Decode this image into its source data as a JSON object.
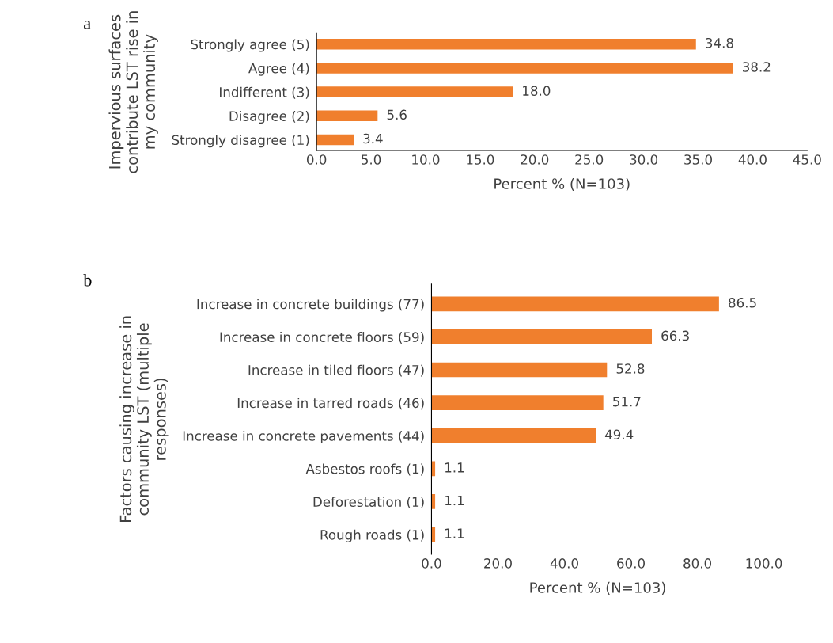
{
  "chart_data": [
    {
      "type": "bar",
      "orientation": "horizontal",
      "title": "a",
      "ylabel": "Impervious surfaces\ncontribute LST rise in\nmy community",
      "xlabel": "Percent % (N=103)",
      "categories": [
        "Strongly agree (5)",
        "Agree (4)",
        "Indifferent (3)",
        "Disagree (2)",
        "Strongly disagree (1)"
      ],
      "values": [
        34.8,
        38.2,
        18.0,
        5.6,
        3.4
      ],
      "value_labels": [
        "34.8",
        "38.2",
        "18.0",
        "5.6",
        "3.4"
      ],
      "color": "#f07f2d",
      "grid": false,
      "legend": false,
      "xlim": [
        0,
        45
      ],
      "xticks": [
        {
          "value": 0,
          "label": "0.0"
        },
        {
          "value": 5,
          "label": "5.0"
        },
        {
          "value": 10,
          "label": "10.0"
        },
        {
          "value": 15,
          "label": "15.0"
        },
        {
          "value": 20,
          "label": "20.0"
        },
        {
          "value": 25,
          "label": "25.0"
        },
        {
          "value": 30,
          "label": "30.0"
        },
        {
          "value": 35,
          "label": "35.0"
        },
        {
          "value": 40,
          "label": "40.0"
        },
        {
          "value": 45,
          "label": "45.0"
        }
      ]
    },
    {
      "type": "bar",
      "orientation": "horizontal",
      "title": "b",
      "ylabel": "Factors causing increase in\ncommunity LST (multiple\nresponses)",
      "xlabel": "Percent % (N=103)",
      "categories": [
        "Increase in concrete buildings (77)",
        "Increase in concrete floors (59)",
        "Increase in tiled floors (47)",
        "Increase in tarred roads (46)",
        "Increase in concrete pavements (44)",
        "Asbestos roofs (1)",
        "Deforestation (1)",
        "Rough roads (1)"
      ],
      "values": [
        86.5,
        66.3,
        52.8,
        51.7,
        49.4,
        1.1,
        1.1,
        1.1
      ],
      "value_labels": [
        "86.5",
        "66.3",
        "52.8",
        "51.7",
        "49.4",
        "1.1",
        "1.1",
        "1.1"
      ],
      "color": "#f07f2d",
      "grid": false,
      "legend": false,
      "xlim": [
        0,
        100
      ],
      "xticks": [
        {
          "value": 0,
          "label": "0.0"
        },
        {
          "value": 20,
          "label": "20.0"
        },
        {
          "value": 40,
          "label": "40.0"
        },
        {
          "value": 60,
          "label": "60.0"
        },
        {
          "value": 80,
          "label": "80.0"
        },
        {
          "value": 100,
          "label": "100.0"
        }
      ]
    }
  ]
}
